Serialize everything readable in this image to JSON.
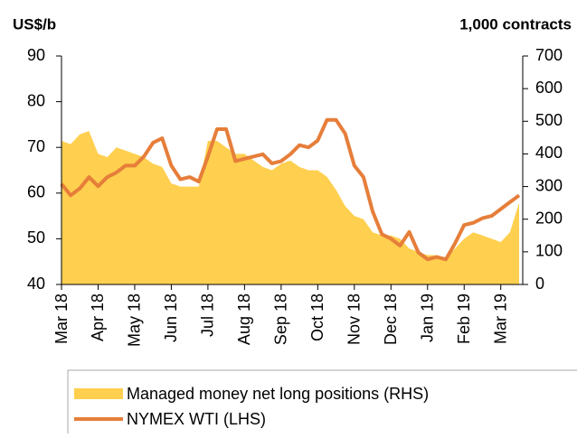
{
  "chart_data": {
    "type": "area-line",
    "y_title": "US$/b",
    "y2_title": "1,000 contracts",
    "x": [
      0,
      0.25,
      0.5,
      0.75,
      1,
      1.25,
      1.5,
      1.75,
      2,
      2.25,
      2.5,
      2.75,
      3,
      3.25,
      3.5,
      3.75,
      4,
      4.25,
      4.5,
      4.75,
      5,
      5.25,
      5.5,
      5.75,
      6,
      6.25,
      6.5,
      6.75,
      7,
      7.25,
      7.5,
      7.75,
      8,
      8.25,
      8.5,
      8.75,
      9,
      9.25,
      9.5,
      9.75,
      10,
      10.25,
      10.5,
      10.75,
      11,
      11.25,
      11.5,
      11.75,
      12,
      12.25,
      12.5
    ],
    "xlim": [
      0,
      12.6
    ],
    "xticks": [
      {
        "value": 0,
        "label": "Mar 18"
      },
      {
        "value": 1,
        "label": "Apr 18"
      },
      {
        "value": 2,
        "label": "May 18"
      },
      {
        "value": 3,
        "label": "Jun 18"
      },
      {
        "value": 4,
        "label": "Jul 18"
      },
      {
        "value": 5,
        "label": "Aug 18"
      },
      {
        "value": 6,
        "label": "Sep 18"
      },
      {
        "value": 7,
        "label": "Oct 18"
      },
      {
        "value": 8,
        "label": "Nov 18"
      },
      {
        "value": 9,
        "label": "Dec 18"
      },
      {
        "value": 10,
        "label": "Jan 19"
      },
      {
        "value": 11,
        "label": "Feb 19"
      },
      {
        "value": 12,
        "label": "Mar 19"
      }
    ],
    "ylim": [
      40,
      90
    ],
    "yticks": [
      40,
      50,
      60,
      70,
      80,
      90
    ],
    "y2lim": [
      0,
      700
    ],
    "y2ticks": [
      0,
      100,
      200,
      300,
      400,
      500,
      600,
      700
    ],
    "series": [
      {
        "name": "Managed money net long positions (RHS)",
        "kind": "area",
        "axis": "y2",
        "color": "#ffcf4f",
        "values": [
          440,
          430,
          460,
          470,
          400,
          390,
          420,
          410,
          400,
          390,
          370,
          360,
          310,
          300,
          300,
          300,
          440,
          440,
          420,
          400,
          400,
          380,
          360,
          350,
          370,
          380,
          360,
          350,
          350,
          330,
          290,
          240,
          210,
          200,
          160,
          150,
          150,
          140,
          110,
          100,
          90,
          90,
          80,
          110,
          140,
          160,
          150,
          140,
          130,
          160,
          250
        ]
      },
      {
        "name": "NYMEX WTI (LHS)",
        "kind": "line",
        "axis": "y",
        "color": "#e67e3a",
        "values": [
          62,
          59.5,
          61,
          63.5,
          61.5,
          63.5,
          64.5,
          66,
          66,
          68,
          71,
          72,
          66,
          63,
          63.5,
          62.5,
          68,
          74,
          74,
          67,
          67.5,
          68,
          68.5,
          66.5,
          67,
          68.5,
          70.5,
          70,
          71.5,
          76,
          76,
          73,
          66,
          63.5,
          56,
          51,
          50,
          48.5,
          51.5,
          47,
          45.5,
          46,
          45.5,
          49,
          53,
          53.5,
          54.5,
          55,
          56.5,
          58,
          59.5
        ]
      }
    ],
    "legend": "bottom"
  }
}
